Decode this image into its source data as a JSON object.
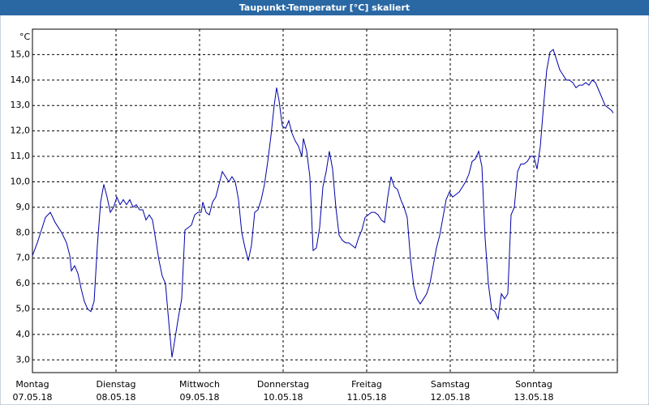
{
  "chart_data": {
    "type": "line",
    "title": "Taupunkt-Temperatur [°C] skaliert",
    "y_unit": "°C",
    "x": [
      0,
      0.058,
      0.117,
      0.155,
      0.214,
      0.272,
      0.35,
      0.408,
      0.447,
      0.466,
      0.505,
      0.544,
      0.583,
      0.621,
      0.66,
      0.699,
      0.738,
      0.777,
      0.816,
      0.854,
      0.893,
      0.932,
      0.971,
      1.01,
      1.049,
      1.087,
      1.126,
      1.165,
      1.204,
      1.243,
      1.282,
      1.32,
      1.359,
      1.398,
      1.437,
      1.476,
      1.515,
      1.553,
      1.592,
      1.631,
      1.67,
      1.709,
      1.748,
      1.786,
      1.825,
      1.864,
      1.903,
      1.942,
      1.981,
      2.019,
      2.039,
      2.078,
      2.117,
      2.155,
      2.194,
      2.233,
      2.272,
      2.311,
      2.35,
      2.388,
      2.427,
      2.466,
      2.505,
      2.544,
      2.583,
      2.621,
      2.66,
      2.699,
      2.738,
      2.777,
      2.816,
      2.854,
      2.893,
      2.922,
      2.951,
      2.99,
      3.029,
      3.068,
      3.107,
      3.146,
      3.184,
      3.223,
      3.243,
      3.282,
      3.32,
      3.359,
      3.398,
      3.437,
      3.476,
      3.515,
      3.553,
      3.592,
      3.631,
      3.67,
      3.709,
      3.748,
      3.786,
      3.825,
      3.864,
      3.903,
      3.942,
      3.981,
      4.019,
      4.058,
      4.097,
      4.136,
      4.175,
      4.214,
      4.252,
      4.291,
      4.33,
      4.369,
      4.408,
      4.447,
      4.485,
      4.524,
      4.563,
      4.602,
      4.641,
      4.68,
      4.718,
      4.757,
      4.796,
      4.835,
      4.874,
      4.913,
      4.951,
      4.99,
      5.029,
      5.068,
      5.107,
      5.146,
      5.184,
      5.223,
      5.262,
      5.301,
      5.34,
      5.379,
      5.417,
      5.456,
      5.495,
      5.534,
      5.573,
      5.612,
      5.65,
      5.689,
      5.728,
      5.767,
      5.806,
      5.845,
      5.883,
      5.922,
      5.961,
      6.0,
      6.039,
      6.078,
      6.117,
      6.155,
      6.194,
      6.233,
      6.272,
      6.311,
      6.35,
      6.388,
      6.427,
      6.466,
      6.505,
      6.544,
      6.583,
      6.621,
      6.66,
      6.699,
      6.738,
      6.777,
      6.816,
      6.854,
      6.893,
      6.932,
      6.951
    ],
    "series": [
      {
        "color": "#0000a8",
        "values": [
          7.1,
          7.6,
          8.2,
          8.6,
          8.8,
          8.4,
          8.0,
          7.6,
          7.1,
          6.5,
          6.7,
          6.4,
          5.8,
          5.3,
          5.0,
          4.9,
          5.3,
          7.5,
          9.2,
          9.9,
          9.4,
          8.8,
          9.0,
          9.4,
          9.1,
          9.3,
          9.1,
          9.3,
          9.0,
          9.1,
          8.9,
          8.9,
          8.5,
          8.7,
          8.5,
          7.7,
          6.9,
          6.3,
          6.0,
          4.5,
          3.1,
          3.9,
          4.7,
          5.4,
          8.1,
          8.2,
          8.3,
          8.7,
          8.8,
          8.8,
          9.2,
          8.8,
          8.7,
          9.2,
          9.4,
          9.9,
          10.4,
          10.2,
          10.0,
          10.2,
          10.0,
          9.3,
          8.0,
          7.4,
          6.9,
          7.5,
          8.8,
          8.9,
          9.3,
          9.9,
          10.8,
          11.8,
          13.0,
          13.7,
          13.2,
          12.2,
          12.1,
          12.4,
          11.9,
          11.6,
          11.4,
          11.0,
          11.7,
          11.2,
          10.2,
          7.3,
          7.4,
          8.2,
          9.8,
          10.4,
          11.2,
          10.5,
          9.0,
          7.9,
          7.7,
          7.6,
          7.6,
          7.5,
          7.4,
          7.8,
          8.1,
          8.6,
          8.7,
          8.8,
          8.8,
          8.7,
          8.5,
          8.4,
          9.4,
          10.2,
          9.8,
          9.7,
          9.3,
          9.0,
          8.6,
          7.0,
          5.9,
          5.4,
          5.2,
          5.4,
          5.6,
          6.0,
          6.7,
          7.4,
          7.9,
          8.6,
          9.3,
          9.6,
          9.4,
          9.5,
          9.6,
          9.8,
          10.0,
          10.3,
          10.8,
          10.9,
          11.2,
          10.6,
          7.8,
          6.0,
          5.0,
          4.9,
          4.6,
          5.6,
          5.4,
          5.6,
          8.7,
          9.0,
          10.4,
          10.7,
          10.7,
          10.8,
          11.0,
          11.0,
          10.5,
          11.4,
          13.0,
          14.4,
          15.1,
          15.2,
          14.8,
          14.4,
          14.2,
          14.0,
          14.0,
          13.9,
          13.7,
          13.8,
          13.8,
          13.9,
          13.8,
          14.0,
          13.9,
          13.6,
          13.3,
          13.0,
          12.9,
          12.8,
          12.7
        ]
      }
    ],
    "xlim": [
      0,
      7
    ],
    "xticks": [
      {
        "value": 0,
        "label": "Montag",
        "date": "07.05.18"
      },
      {
        "value": 1,
        "label": "Dienstag",
        "date": "08.05.18"
      },
      {
        "value": 2,
        "label": "Mittwoch",
        "date": "09.05.18"
      },
      {
        "value": 3,
        "label": "Donnerstag",
        "date": "10.05.18"
      },
      {
        "value": 4,
        "label": "Freitag",
        "date": "11.05.18"
      },
      {
        "value": 5,
        "label": "Samstag",
        "date": "12.05.18"
      },
      {
        "value": 6,
        "label": "Sonntag",
        "date": "13.05.18"
      }
    ],
    "ylim": [
      2.5,
      16.0
    ],
    "yticks": [
      {
        "value": 3,
        "label": "3,0"
      },
      {
        "value": 4,
        "label": "4,0"
      },
      {
        "value": 5,
        "label": "5,0"
      },
      {
        "value": 6,
        "label": "6,0"
      },
      {
        "value": 7,
        "label": "7,0"
      },
      {
        "value": 8,
        "label": "8,0"
      },
      {
        "value": 9,
        "label": "9,0"
      },
      {
        "value": 10,
        "label": "10,0"
      },
      {
        "value": 11,
        "label": "11,0"
      },
      {
        "value": 12,
        "label": "12,0"
      },
      {
        "value": 13,
        "label": "13,0"
      },
      {
        "value": 14,
        "label": "14,0"
      },
      {
        "value": 15,
        "label": "15,0"
      }
    ],
    "grid": true
  }
}
